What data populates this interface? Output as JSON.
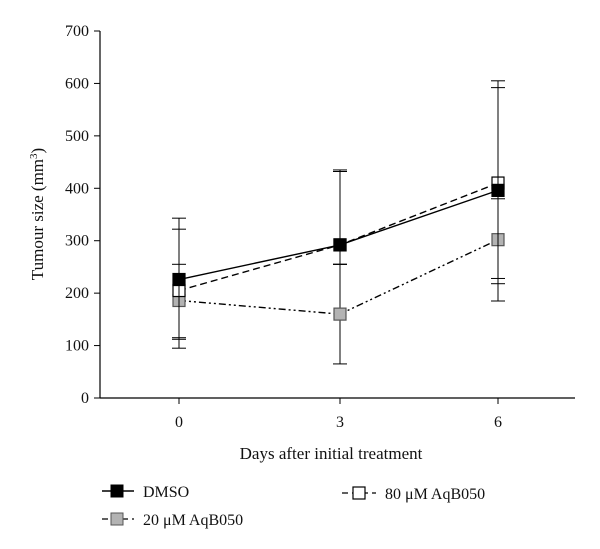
{
  "chart_data": {
    "type": "line",
    "title": "",
    "xlabel": "Days after initial treatment",
    "ylabel_main": "Tumour size (mm",
    "ylabel_sup": "3",
    "ylabel_end": ")",
    "x": [
      0,
      3,
      6
    ],
    "x_ticks": [
      "0",
      "3",
      "6"
    ],
    "ylim": [
      0,
      700
    ],
    "y_ticks": [
      "0",
      "100",
      "200",
      "300",
      "400",
      "500",
      "600",
      "700"
    ],
    "grid": false,
    "legend_position": "bottom",
    "series": [
      {
        "name": "DMSO",
        "values": [
          226,
          292,
          396
        ],
        "err_low": [
          115,
          255,
          185
        ],
        "err_high": [
          343,
          435,
          605
        ],
        "marker": "filled-square",
        "line_style": "solid",
        "color": "#000000"
      },
      {
        "name": "20 μM AqB050",
        "values": [
          186,
          160,
          302
        ],
        "err_low": [
          112,
          65,
          228
        ],
        "err_high": [
          255,
          255,
          380
        ],
        "marker": "gray-square",
        "line_style": "dash-dot-dot",
        "color": "#b3b3b3"
      },
      {
        "name": "80 μM AqB050",
        "values": [
          205,
          292,
          410
        ],
        "err_low": [
          95,
          255,
          218
        ],
        "err_high": [
          322,
          432,
          592
        ],
        "marker": "open-square",
        "line_style": "dashed",
        "color": "#ffffff"
      }
    ]
  }
}
